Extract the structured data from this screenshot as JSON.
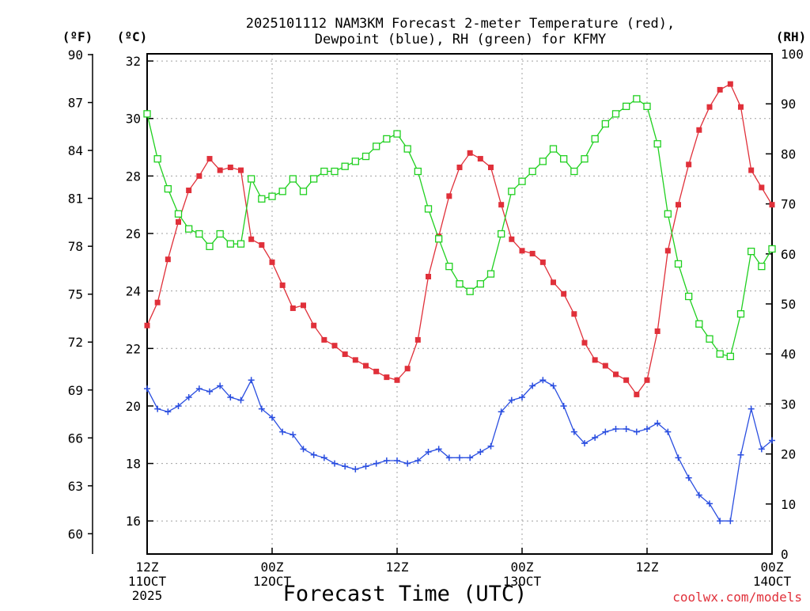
{
  "chart_data": {
    "type": "line",
    "title_lines": [
      "2025101112 NAM3KM Forecast 2-meter Temperature (red),",
      "Dewpoint (blue), RH (green) for KFMY"
    ],
    "xlabel": "Forecast Time (UTC)",
    "credit": "coolwx.com/models",
    "units": {
      "fahrenheit": "(ºF)",
      "celsius": "(ºC)",
      "rh": "(RH)"
    },
    "x_ticks": [
      {
        "hour": 0,
        "lines": [
          "12Z",
          "11OCT",
          "2025"
        ]
      },
      {
        "hour": 12,
        "lines": [
          "00Z",
          "12OCT"
        ]
      },
      {
        "hour": 24,
        "lines": [
          "12Z"
        ]
      },
      {
        "hour": 36,
        "lines": [
          "00Z",
          "13OCT"
        ]
      },
      {
        "hour": 48,
        "lines": [
          "12Z"
        ]
      },
      {
        "hour": 60,
        "lines": [
          "00Z",
          "14OCT"
        ]
      }
    ],
    "xlim": [
      0,
      60
    ],
    "celsius_axis": {
      "ylim": [
        14.85,
        32.25
      ],
      "ticks": [
        16,
        18,
        20,
        22,
        24,
        26,
        28,
        30,
        32
      ]
    },
    "fahrenheit_axis": {
      "ylim": [
        58.73,
        90.05
      ],
      "ticks": [
        60,
        63,
        66,
        69,
        72,
        75,
        78,
        81,
        84,
        87,
        90
      ]
    },
    "rh_axis": {
      "ylim": [
        0,
        100
      ],
      "ticks": [
        0,
        10,
        20,
        30,
        40,
        50,
        60,
        70,
        80,
        90,
        100
      ]
    },
    "series": [
      {
        "name": "2-meter Temperature",
        "color": "#e0303a",
        "marker": "filled-square",
        "units": "degC",
        "x": [
          0,
          1,
          2,
          3,
          4,
          5,
          6,
          7,
          8,
          9,
          10,
          11,
          12,
          13,
          14,
          15,
          16,
          17,
          18,
          19,
          20,
          21,
          22,
          23,
          24,
          25,
          26,
          27,
          28,
          29,
          30,
          31,
          32,
          33,
          34,
          35,
          36,
          37,
          38,
          39,
          40,
          41,
          42,
          43,
          44,
          45,
          46,
          47,
          48,
          49,
          50,
          51,
          52,
          53,
          54,
          55,
          56,
          57,
          58,
          59,
          60
        ],
        "values": [
          22.8,
          23.6,
          25.1,
          26.4,
          27.5,
          28.0,
          28.6,
          28.2,
          28.3,
          28.2,
          25.8,
          25.6,
          25.0,
          24.2,
          23.4,
          23.5,
          22.8,
          22.3,
          22.1,
          21.8,
          21.6,
          21.4,
          21.2,
          21.0,
          20.9,
          21.3,
          22.3,
          24.5,
          25.9,
          27.3,
          28.3,
          28.8,
          28.6,
          28.3,
          27.0,
          25.8,
          25.4,
          25.3,
          25.0,
          24.3,
          23.9,
          23.2,
          22.2,
          21.6,
          21.4,
          21.1,
          20.9,
          20.4,
          20.9,
          22.6,
          25.4,
          27.0,
          28.4,
          29.6,
          30.4,
          31.0,
          31.2,
          30.4,
          28.2,
          27.6,
          27.0
        ]
      },
      {
        "name": "Dewpoint",
        "color": "#2a4ee0",
        "marker": "plus",
        "units": "degC",
        "x": [
          0,
          1,
          2,
          3,
          4,
          5,
          6,
          7,
          8,
          9,
          10,
          11,
          12,
          13,
          14,
          15,
          16,
          17,
          18,
          19,
          20,
          21,
          22,
          23,
          24,
          25,
          26,
          27,
          28,
          29,
          30,
          31,
          32,
          33,
          34,
          35,
          36,
          37,
          38,
          39,
          40,
          41,
          42,
          43,
          44,
          45,
          46,
          47,
          48,
          49,
          50,
          51,
          52,
          53,
          54,
          55,
          56,
          57,
          58,
          59,
          60
        ],
        "values": [
          20.6,
          19.9,
          19.8,
          20.0,
          20.3,
          20.6,
          20.5,
          20.7,
          20.3,
          20.2,
          20.9,
          19.9,
          19.6,
          19.1,
          19.0,
          18.5,
          18.3,
          18.2,
          18.0,
          17.9,
          17.8,
          17.9,
          18.0,
          18.1,
          18.1,
          18.0,
          18.1,
          18.4,
          18.5,
          18.2,
          18.2,
          18.2,
          18.4,
          18.6,
          19.8,
          20.2,
          20.3,
          20.7,
          20.9,
          20.7,
          20.0,
          19.1,
          18.7,
          18.9,
          19.1,
          19.2,
          19.2,
          19.1,
          19.2,
          19.4,
          19.1,
          18.2,
          17.5,
          16.9,
          16.6,
          16.0,
          16.0,
          18.3,
          19.9,
          18.5,
          18.8
        ]
      },
      {
        "name": "RH",
        "color": "#20d020",
        "marker": "open-square",
        "units": "percent",
        "x": [
          0,
          1,
          2,
          3,
          4,
          5,
          6,
          7,
          8,
          9,
          10,
          11,
          12,
          13,
          14,
          15,
          16,
          17,
          18,
          19,
          20,
          21,
          22,
          23,
          24,
          25,
          26,
          27,
          28,
          29,
          30,
          31,
          32,
          33,
          34,
          35,
          36,
          37,
          38,
          39,
          40,
          41,
          42,
          43,
          44,
          45,
          46,
          47,
          48,
          49,
          50,
          51,
          52,
          53,
          54,
          55,
          56,
          57,
          58,
          59,
          60
        ],
        "values": [
          88,
          79,
          73,
          68,
          65,
          64,
          61.5,
          64,
          62,
          62,
          75,
          71,
          71.5,
          72.5,
          75,
          72.5,
          75,
          76.5,
          76.5,
          77.5,
          78.5,
          79.5,
          81.5,
          83,
          84,
          81,
          76.5,
          69,
          63,
          57.5,
          54,
          52.5,
          54,
          56,
          64,
          72.5,
          74.5,
          76.5,
          78.5,
          81,
          79,
          76.5,
          79,
          83,
          86,
          88,
          89.5,
          91,
          89.5,
          82,
          68,
          58,
          51.5,
          46,
          43,
          40,
          39.5,
          48,
          60.5,
          57.5,
          61
        ]
      }
    ]
  }
}
